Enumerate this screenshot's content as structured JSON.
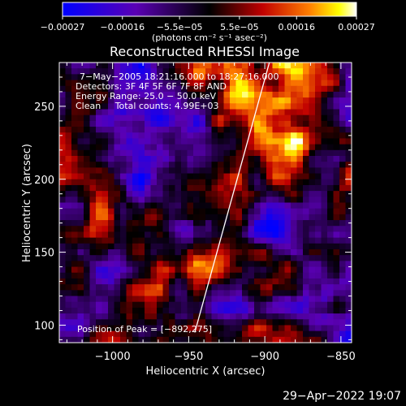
{
  "chart_data": {
    "type": "heatmap",
    "title": "Reconstructed RHESSI Image",
    "xlabel": "Heliocentric X (arcsec)",
    "ylabel": "Heliocentric Y (arcsec)",
    "xlim": [
      -1035,
      -843
    ],
    "ylim": [
      88,
      280
    ],
    "x_ticks": [
      -1000,
      -950,
      -900,
      -850
    ],
    "x_tick_labels": [
      "−1000",
      "−950",
      "−900",
      "−850"
    ],
    "y_ticks": [
      100,
      150,
      200,
      250
    ],
    "y_tick_labels": [
      "100",
      "150",
      "200",
      "250"
    ],
    "colorbar": {
      "range": [
        -0.00027,
        0.00027
      ],
      "ticks": [
        -0.00027,
        -0.00016,
        -5.5e-05,
        5.5e-05,
        0.00016,
        0.00027
      ],
      "tick_labels": [
        "−0.00027",
        "−0.00016",
        "−5.5e−05",
        "5.5e−05",
        "0.00016",
        "0.00027"
      ],
      "unit_label": "(photons cm⁻² s⁻¹ asec⁻²)",
      "colormap": "blue-purple-black-red-orange-yellow-white"
    },
    "annotations": [
      "7−May−2005 18:21:16.000 to 18:27:16.000",
      "Detectors: 3F 4F 5F 6F 7F 8F AND",
      "Energy Range: 25.0 − 50.0 keV",
      "Clean     Total counts: 4.99E+03"
    ],
    "peak_label": "Position of Peak = [−892,275]",
    "peak_position": [
      -892,
      275
    ],
    "limb_line": {
      "x1": -946,
      "y1": 95,
      "x2": -897,
      "y2": 280
    }
  },
  "timestamp": "29−Apr−2022 19:07"
}
